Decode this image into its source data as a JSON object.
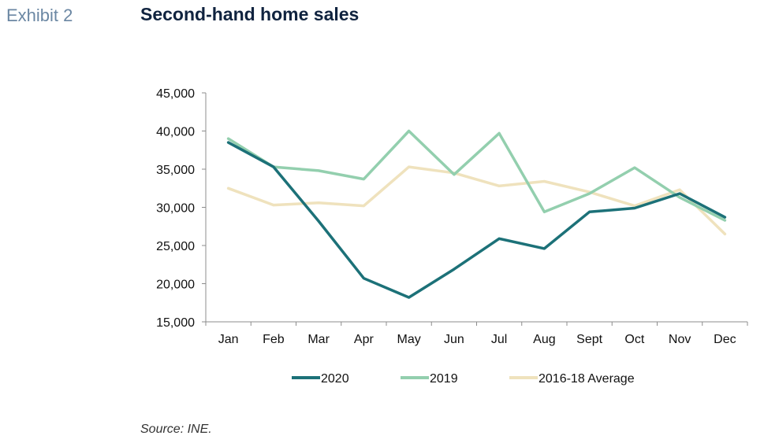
{
  "header": {
    "exhibit": "Exhibit 2",
    "title": "Second-hand home sales"
  },
  "footer": {
    "source": "Source: INE."
  },
  "chart_data": {
    "type": "line",
    "title": "Second-hand home sales",
    "xlabel": "",
    "ylabel": "",
    "categories": [
      "Jan",
      "Feb",
      "Mar",
      "Apr",
      "May",
      "Jun",
      "Jul",
      "Aug",
      "Sept",
      "Oct",
      "Nov",
      "Dec"
    ],
    "ylim": [
      15000,
      45000
    ],
    "yticks": [
      15000,
      20000,
      25000,
      30000,
      35000,
      40000,
      45000
    ],
    "ytick_labels": [
      "15,000",
      "20,000",
      "25,000",
      "30,000",
      "35,000",
      "40,000",
      "45,000"
    ],
    "grid": false,
    "legend": "bottom",
    "series": [
      {
        "name": "2020",
        "color": "#1c7178",
        "values": [
          38500,
          35300,
          28200,
          20700,
          18200,
          21900,
          25900,
          24600,
          29400,
          29900,
          31800,
          28700
        ]
      },
      {
        "name": "2019",
        "color": "#93cfae",
        "values": [
          39000,
          35300,
          34800,
          33700,
          40000,
          34300,
          39700,
          29400,
          31800,
          35200,
          31300,
          28300
        ]
      },
      {
        "name": "2016-18 Average",
        "color": "#efe2bd",
        "values": [
          32500,
          30300,
          30600,
          30200,
          35300,
          34500,
          32800,
          33400,
          32000,
          30200,
          32300,
          26500
        ]
      }
    ]
  }
}
